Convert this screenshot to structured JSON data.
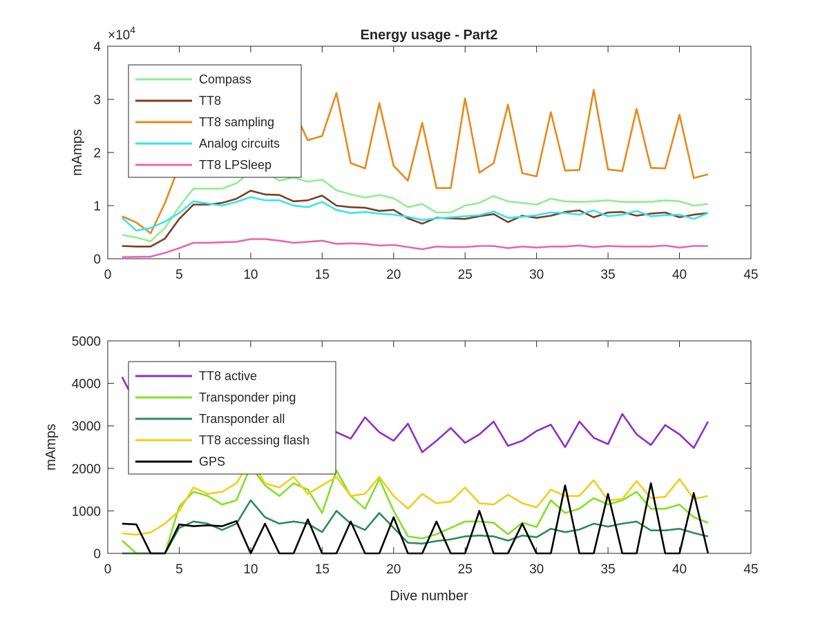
{
  "figure": {
    "title": "Energy usage - Part2"
  },
  "chart_data": [
    {
      "type": "line",
      "title": "Energy usage - Part2",
      "xlabel": "",
      "ylabel": "mAmps",
      "xlim": [
        0,
        45
      ],
      "ylim": [
        0,
        40000
      ],
      "xticks": [
        0,
        5,
        10,
        15,
        20,
        25,
        30,
        35,
        40,
        45
      ],
      "yticks": [
        0,
        10000,
        20000,
        30000,
        40000
      ],
      "ytick_labels": [
        "0",
        "1",
        "2",
        "3",
        "4"
      ],
      "y_exponent_label": "×10",
      "y_exponent_power": "4",
      "grid": false,
      "legend_position": "top-left",
      "x": [
        1,
        2,
        3,
        4,
        5,
        6,
        7,
        8,
        9,
        10,
        11,
        12,
        13,
        14,
        15,
        16,
        17,
        18,
        19,
        20,
        21,
        22,
        23,
        24,
        25,
        26,
        27,
        28,
        29,
        30,
        31,
        32,
        33,
        34,
        35,
        36,
        37,
        38,
        39,
        40,
        41,
        42
      ],
      "series": [
        {
          "name": "Compass",
          "color": "#90ee90",
          "values": [
            4500,
            4000,
            3300,
            5800,
            9800,
            13200,
            13200,
            13200,
            14200,
            16400,
            16300,
            14700,
            15300,
            14500,
            14900,
            12900,
            12100,
            11500,
            12000,
            11400,
            9700,
            10300,
            8700,
            8700,
            10000,
            10500,
            11800,
            10800,
            10500,
            10200,
            11300,
            10800,
            10700,
            10800,
            11000,
            10700,
            10700,
            10700,
            11000,
            10800,
            10000,
            10300
          ]
        },
        {
          "name": "TT8",
          "color": "#7b3f1e",
          "values": [
            2400,
            2300,
            2300,
            3800,
            7500,
            10200,
            10200,
            10500,
            11300,
            12800,
            12100,
            12000,
            10800,
            11000,
            11900,
            10000,
            9700,
            9600,
            9000,
            9200,
            7600,
            6600,
            7700,
            7600,
            7500,
            8000,
            8400,
            6900,
            8100,
            7700,
            8100,
            8800,
            9100,
            7800,
            8700,
            8800,
            8100,
            8500,
            8700,
            7800,
            8300,
            8600
          ]
        },
        {
          "name": "TT8 sampling",
          "color": "#e8891a",
          "values": [
            8000,
            6800,
            4800,
            10500,
            17500,
            23000,
            24500,
            26500,
            27500,
            29500,
            26000,
            26500,
            28000,
            22300,
            23100,
            31200,
            18000,
            17000,
            29300,
            17500,
            14700,
            25600,
            13300,
            13300,
            30200,
            16200,
            18000,
            29000,
            16100,
            15500,
            27600,
            16600,
            16700,
            31800,
            16800,
            16500,
            28200,
            17100,
            17000,
            27100,
            15200,
            15900
          ]
        },
        {
          "name": "Analog circuits",
          "color": "#35e5f0",
          "values": [
            7700,
            5300,
            5800,
            7000,
            8600,
            10800,
            10400,
            10000,
            10700,
            11600,
            11000,
            11000,
            10000,
            9700,
            10700,
            9200,
            8600,
            8800,
            8500,
            8300,
            7900,
            7300,
            7600,
            7800,
            8000,
            8200,
            8900,
            7700,
            7900,
            8200,
            8700,
            8600,
            8300,
            9100,
            8000,
            8300,
            9000,
            8000,
            8200,
            8300,
            7500,
            8600
          ]
        },
        {
          "name": "TT8 LPSleep",
          "color": "#e866b0",
          "values": [
            300,
            350,
            400,
            1100,
            2000,
            3000,
            3000,
            3100,
            3200,
            3700,
            3700,
            3400,
            3000,
            3200,
            3400,
            2800,
            2900,
            2800,
            2500,
            2600,
            2200,
            1800,
            2300,
            2200,
            2200,
            2400,
            2400,
            2000,
            2300,
            2100,
            2300,
            2300,
            2500,
            2200,
            2400,
            2300,
            2300,
            2300,
            2500,
            2100,
            2400,
            2400
          ]
        }
      ]
    },
    {
      "type": "line",
      "title": "",
      "xlabel": "Dive number",
      "ylabel": "mAmps",
      "xlim": [
        0,
        45
      ],
      "ylim": [
        0,
        5000
      ],
      "xticks": [
        0,
        5,
        10,
        15,
        20,
        25,
        30,
        35,
        40,
        45
      ],
      "yticks": [
        0,
        1000,
        2000,
        3000,
        4000,
        5000
      ],
      "ytick_labels": [
        "0",
        "1000",
        "2000",
        "3000",
        "4000",
        "5000"
      ],
      "grid": false,
      "legend_position": "top-left",
      "x": [
        1,
        2,
        3,
        4,
        5,
        6,
        7,
        8,
        9,
        10,
        11,
        12,
        13,
        14,
        15,
        16,
        17,
        18,
        19,
        20,
        21,
        22,
        23,
        24,
        25,
        26,
        27,
        28,
        29,
        30,
        31,
        32,
        33,
        34,
        35,
        36,
        37,
        38,
        39,
        40,
        41,
        42
      ],
      "series": [
        {
          "name": "TT8 active",
          "color": "#8e2ec9",
          "values": [
            4150,
            3500,
            3300,
            3200,
            3100,
            3000,
            2950,
            2900,
            2850,
            3000,
            3050,
            2950,
            2900,
            2950,
            3100,
            2850,
            2700,
            3200,
            2850,
            2650,
            3050,
            2380,
            2650,
            2950,
            2600,
            2800,
            3100,
            2530,
            2650,
            2880,
            3030,
            2500,
            3100,
            2720,
            2570,
            3280,
            2800,
            2550,
            3020,
            2800,
            2480,
            3100
          ]
        },
        {
          "name": "Transponder ping",
          "color": "#7fe322",
          "values": [
            300,
            0,
            0,
            0,
            1100,
            1450,
            1350,
            1150,
            1250,
            2050,
            1600,
            1350,
            1650,
            1500,
            950,
            1950,
            1350,
            1050,
            1750,
            1000,
            400,
            350,
            450,
            600,
            750,
            750,
            720,
            450,
            720,
            620,
            1250,
            950,
            1050,
            1300,
            1150,
            1250,
            1450,
            1050,
            1050,
            1150,
            850,
            720
          ]
        },
        {
          "name": "Transponder all",
          "color": "#2e8b57",
          "values": [
            0,
            0,
            0,
            0,
            600,
            750,
            700,
            550,
            700,
            1250,
            850,
            700,
            750,
            700,
            500,
            1000,
            700,
            550,
            950,
            600,
            250,
            230,
            290,
            330,
            400,
            420,
            400,
            300,
            420,
            380,
            580,
            500,
            560,
            700,
            630,
            700,
            750,
            540,
            540,
            580,
            480,
            400
          ]
        },
        {
          "name": "TT8 accessing flash",
          "color": "#f5cc1a",
          "values": [
            470,
            440,
            490,
            700,
            1000,
            1550,
            1400,
            1450,
            1650,
            2200,
            1650,
            1550,
            1800,
            1400,
            1600,
            1800,
            1350,
            1400,
            1800,
            1350,
            1050,
            1400,
            1180,
            1220,
            1550,
            1180,
            1150,
            1380,
            1180,
            1080,
            1500,
            1350,
            1350,
            1720,
            1250,
            1280,
            1700,
            1300,
            1330,
            1750,
            1280,
            1350
          ]
        },
        {
          "name": "GPS",
          "color": "#000000",
          "values": [
            700,
            680,
            0,
            0,
            680,
            640,
            660,
            640,
            760,
            0,
            700,
            0,
            0,
            800,
            0,
            0,
            750,
            0,
            0,
            850,
            0,
            0,
            750,
            0,
            0,
            1000,
            0,
            0,
            700,
            0,
            0,
            1600,
            0,
            0,
            1400,
            0,
            0,
            1650,
            0,
            0,
            1420,
            0
          ]
        }
      ]
    }
  ]
}
